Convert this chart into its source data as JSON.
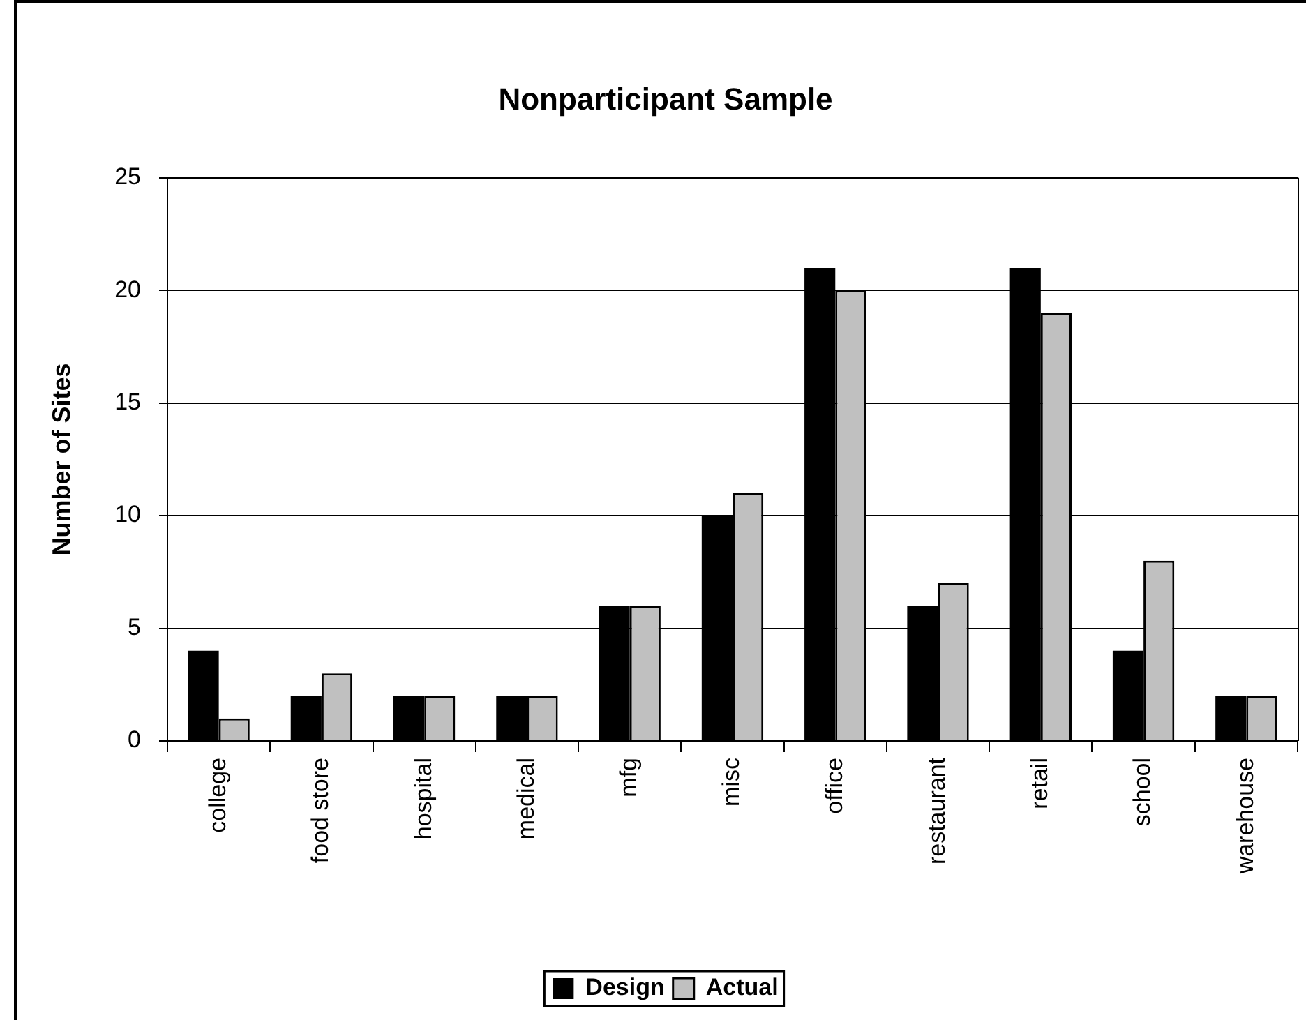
{
  "chart_data": {
    "type": "bar",
    "title": "Nonparticipant Sample",
    "ylabel": "Number of Sites",
    "categories": [
      "college",
      "food store",
      "hospital",
      "medical",
      "mfg",
      "misc",
      "office",
      "restaurant",
      "retail",
      "school",
      "warehouse"
    ],
    "series": [
      {
        "name": "Design",
        "color": "#000000",
        "values": [
          4,
          2,
          2,
          2,
          6,
          10,
          21,
          6,
          21,
          4,
          2
        ]
      },
      {
        "name": "Actual",
        "color": "#c0c0c0",
        "values": [
          1,
          3,
          2,
          2,
          6,
          11,
          20,
          7,
          19,
          8,
          2
        ]
      }
    ],
    "ylim": [
      0,
      25
    ],
    "yticks": [
      0,
      5,
      10,
      15,
      20,
      25
    ],
    "grid": "y",
    "legend": "bottom"
  }
}
